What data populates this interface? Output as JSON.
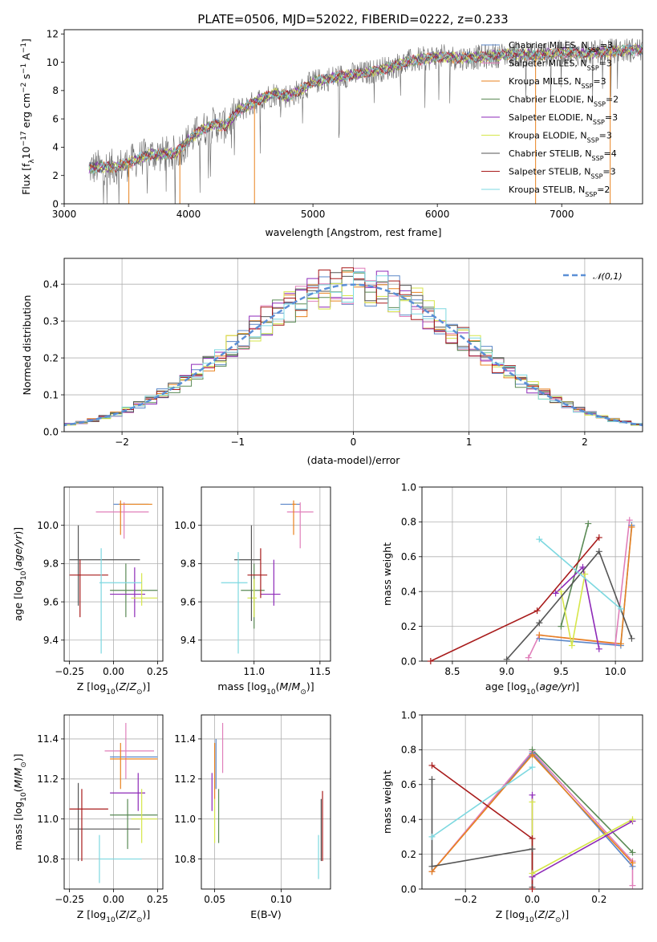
{
  "title": "PLATE=0506, MJD=52022, FIBERID=0222, z=0.233",
  "colors": {
    "Chabrier MILES": "#5b87c8",
    "Salpeter MILES": "#e07fba",
    "Kroupa MILES": "#e8821e",
    "Chabrier ELODIE": "#5a8a55",
    "Salpeter ELODIE": "#8e2ab8",
    "Kroupa ELODIE": "#d6e64a",
    "Chabrier STELIB": "#555555",
    "Salpeter STELIB": "#a81b1b",
    "Kroupa STELIB": "#7dd8e0",
    "gaussian": "#5b8fd6"
  },
  "chart_data": [
    {
      "type": "line",
      "id": "spectrum",
      "xlabel": "wavelength [Angstrom, rest frame]",
      "ylabel": "Flux [f_λ 10^-17 erg cm^-2 s^-1 A^-1]",
      "xlim": [
        3000,
        7650
      ],
      "ylim": [
        0,
        12.3
      ],
      "xticks": [
        3000,
        4000,
        5000,
        6000,
        7000
      ],
      "yticks": [
        0,
        2,
        4,
        6,
        8,
        10,
        12
      ],
      "legend_position": "right",
      "legend": [
        {
          "name": "Chabrier MILES",
          "sub": "SSP",
          "n": "3"
        },
        {
          "name": "Salpeter MILES",
          "sub": "SSP",
          "n": "3"
        },
        {
          "name": "Kroupa MILES",
          "sub": "SSP",
          "n": "3"
        },
        {
          "name": "Chabrier ELODIE",
          "sub": "SSP",
          "n": "2"
        },
        {
          "name": "Salpeter ELODIE",
          "sub": "SSP",
          "n": "3"
        },
        {
          "name": "Kroupa ELODIE",
          "sub": "SSP",
          "n": "3"
        },
        {
          "name": "Chabrier STELIB",
          "sub": "SSP",
          "n": "4"
        },
        {
          "name": "Salpeter STELIB",
          "sub": "SSP",
          "n": "3"
        },
        {
          "name": "Kroupa STELIB",
          "sub": "SSP",
          "n": "2"
        }
      ],
      "model_continuum": {
        "x": [
          3200,
          3300,
          3400,
          3500,
          3600,
          3700,
          3800,
          3900,
          4000,
          4100,
          4200,
          4300,
          4400,
          4500,
          4600,
          4700,
          4800,
          4900,
          5000,
          5200,
          5400,
          5600,
          5800,
          6000,
          6200,
          6400,
          6600,
          6800,
          7000,
          7200,
          7400,
          7650
        ],
        "y": [
          2.5,
          2.6,
          2.6,
          2.8,
          3.2,
          3.5,
          3.5,
          3.6,
          4.5,
          5.2,
          5.6,
          5.5,
          6.6,
          7.0,
          7.5,
          7.8,
          7.6,
          8.0,
          8.6,
          9.0,
          9.2,
          9.6,
          10.1,
          10.4,
          10.3,
          10.4,
          10.6,
          10.5,
          10.7,
          10.6,
          10.8,
          10.9
        ]
      }
    },
    {
      "type": "line",
      "id": "residuals",
      "xlabel": "(data-model)/error",
      "ylabel": "Normed distribution",
      "xlim": [
        -2.5,
        2.5
      ],
      "ylim": [
        0,
        0.47
      ],
      "xticks": [
        -2,
        -1,
        0,
        1,
        2
      ],
      "yticks": [
        0.0,
        0.1,
        0.2,
        0.3,
        0.4
      ],
      "grid": true,
      "reference_label": "𝒩(0,1)",
      "legend_position": "top-right",
      "bin_width": 0.1
    },
    {
      "type": "scatter",
      "id": "age_vs_Z",
      "xlabel": "Z [log10(Z/Z⊙)]",
      "ylabel": "age [log10(age/yr)]",
      "xlim": [
        -0.28,
        0.28
      ],
      "ylim": [
        9.29,
        10.2
      ],
      "xticks": [
        -0.25,
        0.0,
        0.25
      ],
      "yticks": [
        9.4,
        9.6,
        9.8,
        10.0
      ],
      "grid": true,
      "points": [
        {
          "model": "Chabrier MILES",
          "x": 0.09,
          "y": 10.11,
          "xlo": 0.0,
          "xhi": 0.2,
          "ylo": 10.11,
          "yhi": 10.11
        },
        {
          "model": "Salpeter MILES",
          "x": 0.06,
          "y": 10.07,
          "xlo": -0.1,
          "xhi": 0.2,
          "ylo": 9.93,
          "yhi": 10.12
        },
        {
          "model": "Kroupa MILES",
          "x": 0.04,
          "y": 10.11,
          "xlo": 0.03,
          "xhi": 0.22,
          "ylo": 9.95,
          "yhi": 10.13
        },
        {
          "model": "Chabrier ELODIE",
          "x": 0.07,
          "y": 9.66,
          "xlo": -0.02,
          "xhi": 0.25,
          "ylo": 9.52,
          "yhi": 9.8
        },
        {
          "model": "Salpeter ELODIE",
          "x": 0.12,
          "y": 9.64,
          "xlo": -0.02,
          "xhi": 0.18,
          "ylo": 9.52,
          "yhi": 9.78
        },
        {
          "model": "Kroupa ELODIE",
          "x": 0.16,
          "y": 9.62,
          "xlo": 0.1,
          "xhi": 0.25,
          "ylo": 9.58,
          "yhi": 9.75
        },
        {
          "model": "Chabrier STELIB",
          "x": -0.2,
          "y": 9.82,
          "xlo": -0.25,
          "xhi": 0.15,
          "ylo": 9.58,
          "yhi": 10.0
        },
        {
          "model": "Salpeter STELIB",
          "x": -0.19,
          "y": 9.74,
          "xlo": -0.25,
          "xhi": -0.03,
          "ylo": 9.52,
          "yhi": 9.82
        },
        {
          "model": "Kroupa STELIB",
          "x": -0.07,
          "y": 9.7,
          "xlo": -0.08,
          "xhi": 0.16,
          "ylo": 9.33,
          "yhi": 9.88
        }
      ]
    },
    {
      "type": "scatter",
      "id": "age_vs_mass",
      "xlabel": "mass [log10(M/M⊙)]",
      "xlim": [
        10.6,
        11.58
      ],
      "ylim": [
        9.29,
        10.2
      ],
      "xticks": [
        11.0,
        11.5
      ],
      "yticks": [
        9.4,
        9.6,
        9.8,
        10.0
      ],
      "grid": true,
      "points": [
        {
          "model": "Chabrier MILES",
          "x": 11.3,
          "y": 10.11,
          "xlo": 11.2,
          "xhi": 11.35,
          "ylo": 10.11,
          "yhi": 10.11
        },
        {
          "model": "Salpeter MILES",
          "x": 11.35,
          "y": 10.07,
          "xlo": 11.25,
          "xhi": 11.45,
          "ylo": 9.88,
          "yhi": 10.12
        },
        {
          "model": "Kroupa MILES",
          "x": 11.3,
          "y": 10.11,
          "xlo": 11.29,
          "xhi": 11.32,
          "ylo": 9.95,
          "yhi": 10.13
        },
        {
          "model": "Chabrier ELODIE",
          "x": 11.0,
          "y": 9.66,
          "xlo": 10.9,
          "xhi": 11.08,
          "ylo": 9.46,
          "yhi": 9.8
        },
        {
          "model": "Salpeter ELODIE",
          "x": 11.15,
          "y": 9.64,
          "xlo": 11.05,
          "xhi": 11.2,
          "ylo": 9.58,
          "yhi": 9.82
        },
        {
          "model": "Kroupa ELODIE",
          "x": 11.0,
          "y": 9.62,
          "xlo": 10.95,
          "xhi": 11.02,
          "ylo": 9.52,
          "yhi": 9.72
        },
        {
          "model": "Chabrier STELIB",
          "x": 10.98,
          "y": 9.82,
          "xlo": 10.85,
          "xhi": 11.05,
          "ylo": 9.5,
          "yhi": 10.0
        },
        {
          "model": "Salpeter STELIB",
          "x": 11.05,
          "y": 9.74,
          "xlo": 10.95,
          "xhi": 11.1,
          "ylo": 9.62,
          "yhi": 9.88
        },
        {
          "model": "Kroupa STELIB",
          "x": 10.88,
          "y": 9.7,
          "xlo": 10.75,
          "xhi": 10.95,
          "ylo": 9.33,
          "yhi": 9.86
        }
      ]
    },
    {
      "type": "line",
      "id": "weight_vs_age",
      "xlabel": "age [log10(age/yr)]",
      "ylabel": "mass weight",
      "xlim": [
        8.22,
        10.25
      ],
      "ylim": [
        0,
        1
      ],
      "xticks": [
        8.5,
        9.0,
        9.5,
        10.0
      ],
      "yticks": [
        0.0,
        0.2,
        0.4,
        0.6,
        0.8,
        1.0
      ],
      "grid": true,
      "series": [
        {
          "model": "Chabrier MILES",
          "x": [
            9.3,
            10.05,
            10.15
          ],
          "y": [
            0.13,
            0.09,
            0.78
          ]
        },
        {
          "model": "Salpeter MILES",
          "x": [
            9.2,
            9.3,
            10.0,
            10.13
          ],
          "y": [
            0.02,
            0.15,
            0.1,
            0.81
          ]
        },
        {
          "model": "Kroupa MILES",
          "x": [
            9.3,
            10.05,
            10.15
          ],
          "y": [
            0.15,
            0.1,
            0.77
          ]
        },
        {
          "model": "Chabrier ELODIE",
          "x": [
            9.5,
            9.75
          ],
          "y": [
            0.2,
            0.79
          ]
        },
        {
          "model": "Salpeter ELODIE",
          "x": [
            9.45,
            9.7,
            9.85
          ],
          "y": [
            0.39,
            0.54,
            0.07
          ]
        },
        {
          "model": "Kroupa ELODIE",
          "x": [
            9.5,
            9.6,
            9.72
          ],
          "y": [
            0.4,
            0.09,
            0.5
          ]
        },
        {
          "model": "Chabrier STELIB",
          "x": [
            9.0,
            9.3,
            9.85,
            10.15
          ],
          "y": [
            0.01,
            0.22,
            0.63,
            0.13
          ]
        },
        {
          "model": "Salpeter STELIB",
          "x": [
            8.3,
            9.28,
            9.85
          ],
          "y": [
            0.0,
            0.29,
            0.71
          ]
        },
        {
          "model": "Kroupa STELIB",
          "x": [
            9.3,
            10.05
          ],
          "y": [
            0.7,
            0.3
          ]
        }
      ]
    },
    {
      "type": "scatter",
      "id": "mass_vs_Z",
      "xlabel": "Z [log10(Z/Z⊙)]",
      "ylabel": "mass [log10(M/M⊙)]",
      "xlim": [
        -0.28,
        0.28
      ],
      "ylim": [
        10.65,
        11.52
      ],
      "xticks": [
        -0.25,
        0.0,
        0.25
      ],
      "yticks": [
        10.8,
        11.0,
        11.2,
        11.4
      ],
      "grid": true,
      "points": [
        {
          "model": "Chabrier MILES",
          "x": 0.09,
          "y": 11.31,
          "xlo": -0.02,
          "xhi": 0.25,
          "ylo": 11.31,
          "yhi": 11.31
        },
        {
          "model": "Salpeter MILES",
          "x": 0.07,
          "y": 11.34,
          "xlo": -0.05,
          "xhi": 0.23,
          "ylo": 11.2,
          "yhi": 11.48
        },
        {
          "model": "Kroupa MILES",
          "x": 0.04,
          "y": 11.3,
          "xlo": -0.02,
          "xhi": 0.25,
          "ylo": 11.15,
          "yhi": 11.38
        },
        {
          "model": "Chabrier ELODIE",
          "x": 0.08,
          "y": 11.02,
          "xlo": -0.02,
          "xhi": 0.25,
          "ylo": 10.85,
          "yhi": 11.1
        },
        {
          "model": "Salpeter ELODIE",
          "x": 0.14,
          "y": 11.13,
          "xlo": -0.02,
          "xhi": 0.18,
          "ylo": 11.04,
          "yhi": 11.23
        },
        {
          "model": "Kroupa ELODIE",
          "x": 0.16,
          "y": 11.0,
          "xlo": 0.1,
          "xhi": 0.25,
          "ylo": 10.88,
          "yhi": 11.15
        },
        {
          "model": "Chabrier STELIB",
          "x": -0.2,
          "y": 10.95,
          "xlo": -0.25,
          "xhi": 0.15,
          "ylo": 10.79,
          "yhi": 11.18
        },
        {
          "model": "Salpeter STELIB",
          "x": -0.18,
          "y": 11.05,
          "xlo": -0.25,
          "xhi": -0.03,
          "ylo": 10.79,
          "yhi": 11.15
        },
        {
          "model": "Kroupa STELIB",
          "x": -0.08,
          "y": 10.8,
          "xlo": -0.08,
          "xhi": 0.16,
          "ylo": 10.68,
          "yhi": 10.92
        }
      ]
    },
    {
      "type": "scatter",
      "id": "mass_vs_ebv",
      "xlabel": "E(B-V)",
      "xlim": [
        0.04,
        0.137
      ],
      "ylim": [
        10.65,
        11.52
      ],
      "xticks": [
        0.05,
        0.1
      ],
      "yticks": [
        10.8,
        11.0,
        11.2,
        11.4
      ],
      "grid": true,
      "points": [
        {
          "model": "Chabrier MILES",
          "x": 0.051,
          "y": 11.31,
          "ylo": 11.15,
          "yhi": 11.4
        },
        {
          "model": "Salpeter MILES",
          "x": 0.056,
          "y": 11.34,
          "ylo": 11.23,
          "yhi": 11.48
        },
        {
          "model": "Kroupa MILES",
          "x": 0.05,
          "y": 11.3,
          "ylo": 11.1,
          "yhi": 11.38
        },
        {
          "model": "Chabrier ELODIE",
          "x": 0.053,
          "y": 11.02,
          "ylo": 10.88,
          "yhi": 11.15
        },
        {
          "model": "Salpeter ELODIE",
          "x": 0.048,
          "y": 11.13,
          "ylo": 11.04,
          "yhi": 11.23
        },
        {
          "model": "Kroupa ELODIE",
          "x": 0.05,
          "y": 11.0,
          "ylo": 10.88,
          "yhi": 11.1
        },
        {
          "model": "Chabrier STELIB",
          "x": 0.13,
          "y": 10.95,
          "ylo": 10.79,
          "yhi": 11.1
        },
        {
          "model": "Salpeter STELIB",
          "x": 0.131,
          "y": 11.05,
          "ylo": 10.79,
          "yhi": 11.14
        },
        {
          "model": "Kroupa STELIB",
          "x": 0.128,
          "y": 10.8,
          "ylo": 10.7,
          "yhi": 10.92
        }
      ]
    },
    {
      "type": "line",
      "id": "weight_vs_Z",
      "xlabel": "Z [log10(Z/Z⊙)]",
      "ylabel": "mass weight",
      "xlim": [
        -0.33,
        0.33
      ],
      "ylim": [
        0,
        1
      ],
      "xticks": [
        -0.2,
        0.0,
        0.2
      ],
      "yticks": [
        0.0,
        0.2,
        0.4,
        0.6,
        0.8,
        1.0
      ],
      "grid": true,
      "series": [
        {
          "model": "Chabrier MILES",
          "x": [
            -0.3,
            0.0,
            0.3
          ],
          "y": [
            0.1,
            0.78,
            0.13
          ]
        },
        {
          "model": "Salpeter MILES",
          "x": [
            -0.3,
            0.0,
            0.3,
            0.3
          ],
          "y": [
            0.1,
            0.79,
            0.16,
            0.02
          ]
        },
        {
          "model": "Kroupa MILES",
          "x": [
            -0.3,
            0.0,
            0.3
          ],
          "y": [
            0.1,
            0.77,
            0.15
          ]
        },
        {
          "model": "Chabrier ELODIE",
          "x": [
            0.0,
            0.3
          ],
          "y": [
            0.8,
            0.21
          ]
        },
        {
          "model": "Salpeter ELODIE",
          "x": [
            0.0,
            0.0,
            0.3
          ],
          "y": [
            0.54,
            0.07,
            0.39
          ]
        },
        {
          "model": "Kroupa ELODIE",
          "x": [
            0.0,
            0.0,
            0.3
          ],
          "y": [
            0.5,
            0.09,
            0.4
          ]
        },
        {
          "model": "Chabrier STELIB",
          "x": [
            -0.3,
            -0.3,
            0.0,
            0.0
          ],
          "y": [
            0.63,
            0.13,
            0.23,
            0.01
          ]
        },
        {
          "model": "Salpeter STELIB",
          "x": [
            -0.3,
            0.0,
            0.0
          ],
          "y": [
            0.71,
            0.29,
            0.0
          ]
        },
        {
          "model": "Kroupa STELIB",
          "x": [
            -0.3,
            0.0
          ],
          "y": [
            0.3,
            0.7
          ]
        }
      ]
    }
  ]
}
